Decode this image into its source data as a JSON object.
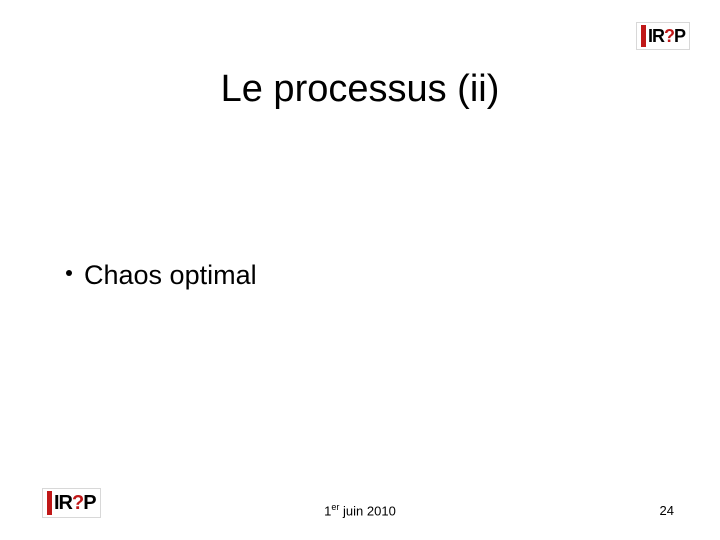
{
  "logo": {
    "text_left": "IR",
    "text_q": "?",
    "text_right": "P",
    "accent_color": "#c01818"
  },
  "title": "Le processus (ii)",
  "bullets": [
    "Chaos optimal"
  ],
  "footer": {
    "date_day": "1",
    "date_sup": "er",
    "date_rest": " juin 2010",
    "page_number": "24"
  },
  "colors": {
    "background": "#ffffff",
    "text": "#000000",
    "accent": "#c01818"
  }
}
